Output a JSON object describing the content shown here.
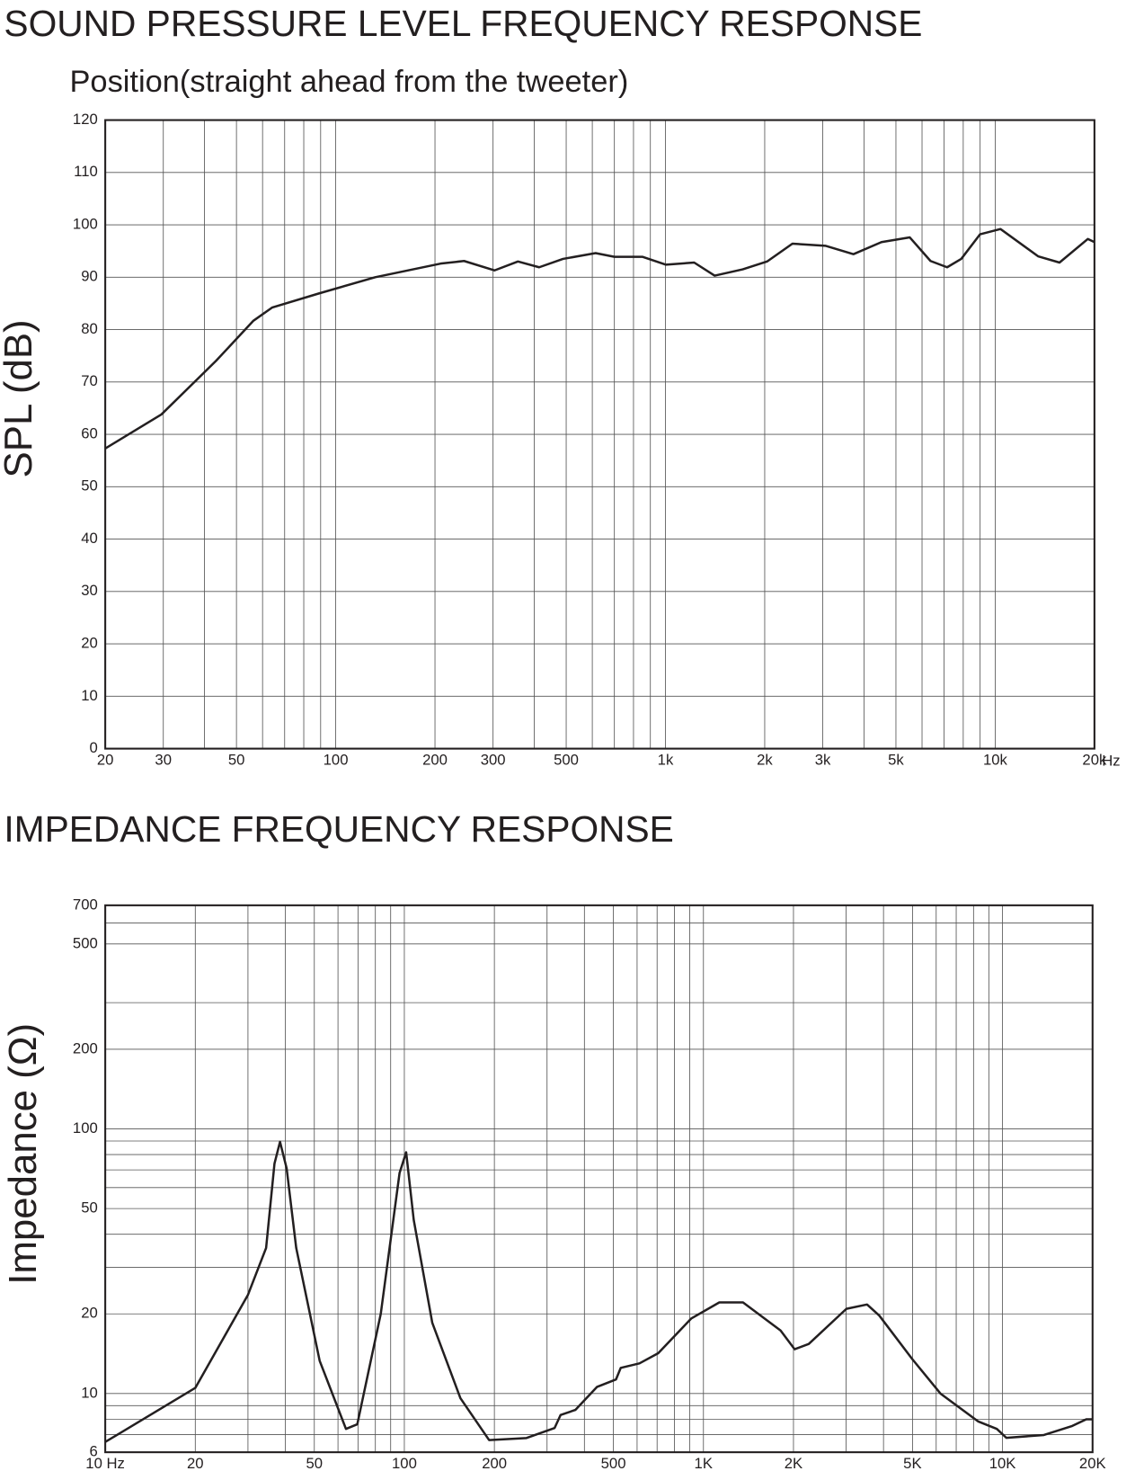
{
  "chart_data": [
    {
      "type": "line",
      "title": "SOUND PRESSURE LEVEL FREQUENCY RESPONSE",
      "subtitle": "Position(straight ahead from the tweeter)",
      "y_label": "SPL (dB)",
      "x_label": "Hz",
      "xscale": "log",
      "yscale": "linear",
      "color": "#231f20",
      "grid": true,
      "xlim": [
        20,
        20000
      ],
      "ylim": [
        0,
        120
      ],
      "xticks": [
        20,
        30,
        50,
        100,
        200,
        300,
        500,
        {
          "value": 1000,
          "label": "1k"
        },
        {
          "value": 2000,
          "label": "2k"
        },
        {
          "value": 3000,
          "label": "3k"
        },
        {
          "value": 5000,
          "label": "5k"
        },
        {
          "value": 10000,
          "label": "10k"
        },
        {
          "value": 20000,
          "label": "20k"
        }
      ],
      "xgrid": [
        40,
        60,
        70,
        80,
        90,
        400,
        600,
        700,
        800,
        900,
        4000,
        6000,
        7000,
        8000,
        9000
      ],
      "yticks": [
        0,
        10,
        20,
        30,
        40,
        50,
        60,
        70,
        80,
        90,
        100,
        110,
        120
      ],
      "x": [
        20,
        29.6,
        43.3,
        56.3,
        64.1,
        88.9,
        131.8,
        208,
        245,
        303,
        357,
        414,
        489,
        614,
        700,
        851,
        1002,
        1222,
        1410,
        1715,
        2033,
        2427,
        3055,
        3716,
        4521,
        5508,
        6366,
        7148,
        7890,
        9000,
        10380,
        13490,
        15670,
        19090,
        20000
      ],
      "values": [
        57.3,
        63.8,
        74,
        81.7,
        84.2,
        86.9,
        90,
        92.6,
        93.1,
        91.3,
        93,
        91.9,
        93.5,
        94.6,
        93.9,
        93.9,
        92.4,
        92.8,
        90.3,
        91.5,
        93,
        96.4,
        96,
        94.4,
        96.7,
        97.6,
        93.1,
        91.9,
        93.5,
        98.2,
        99.2,
        94,
        92.8,
        97.3,
        96.7
      ]
    },
    {
      "type": "line",
      "title": "IMPEDANCE FREQUENCY RESPONSE",
      "y_label": "Impedance (Ω)",
      "xscale": "log",
      "yscale": "log",
      "color": "#231f20",
      "grid": true,
      "xlim": [
        10,
        20000
      ],
      "ylim": [
        6,
        700
      ],
      "xticks": [
        {
          "value": 10,
          "label": "10  Hz"
        },
        20,
        50,
        100,
        200,
        500,
        {
          "value": 1000,
          "label": "1K"
        },
        {
          "value": 2000,
          "label": "2K"
        },
        {
          "value": 5000,
          "label": "5K"
        },
        {
          "value": 10000,
          "label": "10K"
        },
        {
          "value": 20000,
          "label": "20K"
        }
      ],
      "xgrid": [
        30,
        40,
        60,
        70,
        80,
        90,
        300,
        400,
        600,
        700,
        800,
        900,
        3000,
        4000,
        6000,
        7000,
        8000,
        9000
      ],
      "yticks": [
        6,
        10,
        20,
        50,
        100,
        200,
        500,
        700
      ],
      "ygrid": [
        7,
        8,
        9,
        30,
        40,
        60,
        70,
        80,
        90,
        300,
        600
      ],
      "x": [
        10,
        20,
        30,
        34.5,
        36.8,
        38.4,
        40.4,
        43.5,
        52.1,
        63.8,
        69.6,
        83.4,
        96.4,
        101.4,
        107.5,
        124,
        154,
        192,
        256,
        318,
        333,
        373,
        441,
        510,
        529,
        611,
        706,
        910,
        1130,
        1356,
        1811,
        2018,
        2250,
        3006,
        3524,
        3873,
        4990,
        6200,
        8280,
        9570,
        10300,
        13750,
        17100,
        19050,
        20000
      ],
      "values": [
        6.56,
        10.5,
        23.6,
        35.5,
        74,
        89.4,
        71,
        35.5,
        13.3,
        7.35,
        7.65,
        20,
        68.2,
        81.6,
        45.3,
        18.5,
        9.6,
        6.67,
        6.79,
        7.41,
        8.3,
        8.67,
        10.6,
        11.3,
        12.5,
        13,
        14.2,
        19.2,
        22.1,
        22.1,
        17.3,
        14.7,
        15.4,
        20.9,
        21.7,
        19.7,
        13.5,
        10,
        7.85,
        7.35,
        6.8,
        6.97,
        7.54,
        7.99,
        7.99
      ]
    }
  ]
}
